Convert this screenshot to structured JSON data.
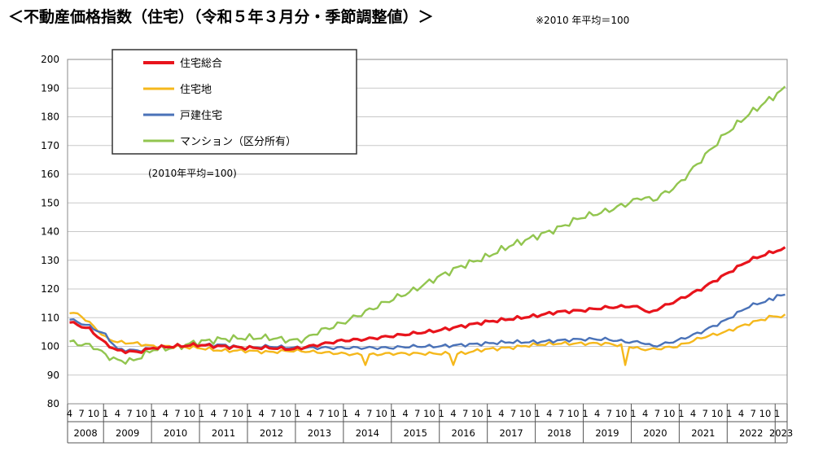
{
  "header": {
    "title": "＜不動産価格指数（住宅）（令和５年３月分・季節調整値）＞",
    "note": "※2010 年平均＝100"
  },
  "chart_data": {
    "type": "line",
    "title": "＜不動産価格指数（住宅）（令和５年３月分・季節調整値）＞",
    "annotation": "(2010年平均=100)",
    "xlabel": "",
    "ylabel": "",
    "ylim": [
      80,
      200
    ],
    "yticks": [
      80,
      90,
      100,
      110,
      120,
      130,
      140,
      150,
      160,
      170,
      180,
      190,
      200
    ],
    "grid": true,
    "legend": "top-left",
    "x_start": "2008-04",
    "x_end": "2023-03",
    "years": [
      "2008",
      "2009",
      "2010",
      "2011",
      "2012",
      "2013",
      "2014",
      "2015",
      "2016",
      "2017",
      "2018",
      "2019",
      "2020",
      "2021",
      "2022",
      "2023"
    ],
    "month_ticks": [
      "1",
      "4",
      "7",
      "10"
    ],
    "series": [
      {
        "name": "住宅総合",
        "color": "#e8141c",
        "anchors": [
          [
            "2008-04",
            108.5
          ],
          [
            "2008-09",
            106
          ],
          [
            "2009-01",
            101
          ],
          [
            "2009-04",
            98.5
          ],
          [
            "2009-09",
            98
          ],
          [
            "2010-01",
            99.5
          ],
          [
            "2010-06",
            100
          ],
          [
            "2010-12",
            100.5
          ],
          [
            "2011-06",
            100
          ],
          [
            "2011-12",
            99.5
          ],
          [
            "2012-06",
            99.5
          ],
          [
            "2012-12",
            99
          ],
          [
            "2013-06",
            100.5
          ],
          [
            "2013-12",
            102
          ],
          [
            "2014-06",
            102.5
          ],
          [
            "2014-12",
            103.5
          ],
          [
            "2015-06",
            104.5
          ],
          [
            "2015-12",
            105.5
          ],
          [
            "2016-06",
            107
          ],
          [
            "2016-12",
            108.5
          ],
          [
            "2017-06",
            109.5
          ],
          [
            "2017-12",
            110.5
          ],
          [
            "2018-06",
            112
          ],
          [
            "2018-12",
            112.5
          ],
          [
            "2019-06",
            113.5
          ],
          [
            "2019-12",
            114
          ],
          [
            "2020-03",
            113.5
          ],
          [
            "2020-05",
            111.5
          ],
          [
            "2020-07",
            113
          ],
          [
            "2020-12",
            116
          ],
          [
            "2021-06",
            120
          ],
          [
            "2021-12",
            125
          ],
          [
            "2022-06",
            130
          ],
          [
            "2022-12",
            133
          ],
          [
            "2023-03",
            134
          ]
        ]
      },
      {
        "name": "住宅地",
        "color": "#f5b81c",
        "anchors": [
          [
            "2008-04",
            112
          ],
          [
            "2008-07",
            110.5
          ],
          [
            "2008-10",
            107
          ],
          [
            "2009-01",
            103
          ],
          [
            "2009-04",
            101.5
          ],
          [
            "2009-09",
            101
          ],
          [
            "2010-01",
            100
          ],
          [
            "2010-06",
            100
          ],
          [
            "2010-12",
            99.5
          ],
          [
            "2011-06",
            98.5
          ],
          [
            "2011-12",
            98.5
          ],
          [
            "2012-06",
            98
          ],
          [
            "2012-12",
            98.5
          ],
          [
            "2013-06",
            98
          ],
          [
            "2013-12",
            97.5
          ],
          [
            "2014-06",
            97
          ],
          [
            "2014-12",
            97.5
          ],
          [
            "2015-06",
            97.5
          ],
          [
            "2015-12",
            97.5
          ],
          [
            "2016-06",
            97.5
          ],
          [
            "2016-12",
            99
          ],
          [
            "2017-06",
            99.5
          ],
          [
            "2017-12",
            100.5
          ],
          [
            "2018-06",
            101
          ],
          [
            "2018-12",
            101
          ],
          [
            "2019-06",
            101
          ],
          [
            "2019-12",
            100
          ],
          [
            "2020-03",
            99
          ],
          [
            "2020-06",
            99
          ],
          [
            "2020-12",
            100
          ],
          [
            "2021-06",
            103
          ],
          [
            "2021-12",
            105
          ],
          [
            "2022-06",
            108
          ],
          [
            "2022-12",
            110.5
          ],
          [
            "2023-03",
            110.5
          ]
        ],
        "spikes": [
          [
            "2014-06",
            93.5
          ],
          [
            "2016-04",
            93.5
          ],
          [
            "2019-11",
            93.5
          ],
          [
            "2008-06",
            111.5
          ]
        ]
      },
      {
        "name": "戸建住宅",
        "color": "#4a72b8",
        "anchors": [
          [
            "2008-04",
            109.5
          ],
          [
            "2008-09",
            107
          ],
          [
            "2009-01",
            104
          ],
          [
            "2009-04",
            99
          ],
          [
            "2009-09",
            98.5
          ],
          [
            "2010-01",
            99.5
          ],
          [
            "2010-06",
            100
          ],
          [
            "2010-12",
            100.5
          ],
          [
            "2011-06",
            100.5
          ],
          [
            "2011-12",
            99.5
          ],
          [
            "2012-06",
            100
          ],
          [
            "2012-12",
            99.5
          ],
          [
            "2013-06",
            99.5
          ],
          [
            "2013-12",
            99.5
          ],
          [
            "2014-06",
            99.5
          ],
          [
            "2014-12",
            99.5
          ],
          [
            "2015-06",
            100
          ],
          [
            "2015-12",
            100
          ],
          [
            "2016-06",
            100.5
          ],
          [
            "2016-12",
            101
          ],
          [
            "2017-06",
            101.5
          ],
          [
            "2017-12",
            101.5
          ],
          [
            "2018-06",
            102
          ],
          [
            "2018-12",
            102.5
          ],
          [
            "2019-06",
            102.5
          ],
          [
            "2019-12",
            101.5
          ],
          [
            "2020-03",
            101.5
          ],
          [
            "2020-06",
            100
          ],
          [
            "2020-12",
            102
          ],
          [
            "2021-06",
            105
          ],
          [
            "2021-12",
            109
          ],
          [
            "2022-06",
            114
          ],
          [
            "2022-12",
            116.5
          ],
          [
            "2023-01",
            118
          ],
          [
            "2023-03",
            117.5
          ]
        ]
      },
      {
        "name": "マンション（区分所有）",
        "color": "#92c54f",
        "anchors": [
          [
            "2008-04",
            101.5
          ],
          [
            "2008-10",
            100
          ],
          [
            "2009-01",
            97
          ],
          [
            "2009-04",
            95
          ],
          [
            "2009-08",
            95
          ],
          [
            "2010-01",
            99
          ],
          [
            "2010-06",
            99.5
          ],
          [
            "2010-12",
            101.5
          ],
          [
            "2011-06",
            102.5
          ],
          [
            "2011-12",
            103
          ],
          [
            "2012-06",
            103
          ],
          [
            "2012-12",
            102
          ],
          [
            "2013-03",
            102.5
          ],
          [
            "2013-06",
            105
          ],
          [
            "2013-12",
            108
          ],
          [
            "2014-06",
            112
          ],
          [
            "2014-12",
            116
          ],
          [
            "2015-06",
            119.5
          ],
          [
            "2015-12",
            124
          ],
          [
            "2016-06",
            128
          ],
          [
            "2016-12",
            131
          ],
          [
            "2017-06",
            135
          ],
          [
            "2017-12",
            138
          ],
          [
            "2018-06",
            141
          ],
          [
            "2018-12",
            145
          ],
          [
            "2019-06",
            147
          ],
          [
            "2019-12",
            150
          ],
          [
            "2020-03",
            152
          ],
          [
            "2020-06",
            151
          ],
          [
            "2020-12",
            156
          ],
          [
            "2021-06",
            165
          ],
          [
            "2021-12",
            174
          ],
          [
            "2022-06",
            181
          ],
          [
            "2022-12",
            187
          ],
          [
            "2023-03",
            190
          ]
        ]
      }
    ]
  }
}
